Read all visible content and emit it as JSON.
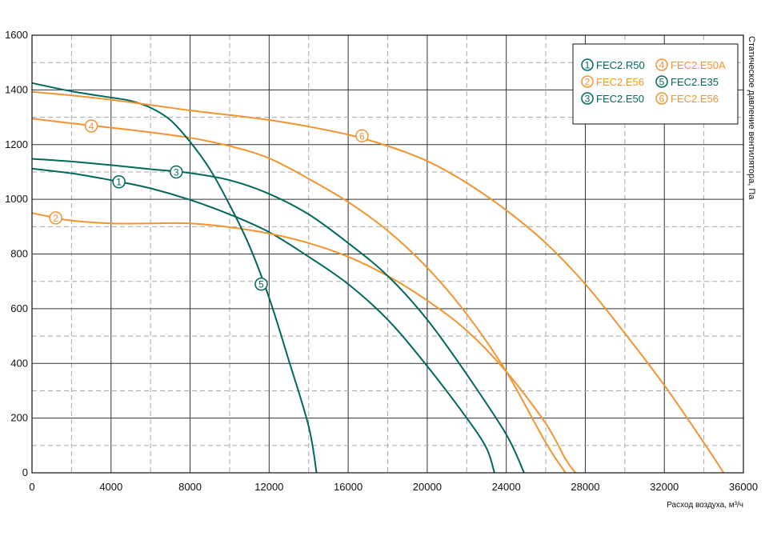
{
  "chart_data": {
    "type": "line",
    "xlabel": "Расход воздуха, м³/ч",
    "ylabel": "Статическое давление вентилятора, Па",
    "xlim": [
      0,
      36000
    ],
    "ylim": [
      0,
      1600
    ],
    "x_ticks": [
      0,
      4000,
      8000,
      12000,
      16000,
      20000,
      24000,
      28000,
      32000,
      36000
    ],
    "y_ticks": [
      0,
      200,
      400,
      600,
      800,
      1000,
      1200,
      1400,
      1600
    ],
    "x_tick_labels": [
      "0",
      "4000",
      "8000",
      "12000",
      "16000",
      "20000",
      "24000",
      "28000",
      "32000",
      "36000"
    ],
    "y_tick_labels": [
      "0",
      "200",
      "400",
      "600",
      "800",
      "1000",
      "1200",
      "1400",
      "1600"
    ],
    "grid": true,
    "legend_position": "top-right",
    "colors": {
      "green": "#00695C",
      "orange": "#F39430"
    },
    "series": [
      {
        "id": 1,
        "name": "FEC2.R50",
        "color": "#00695C",
        "marker": [
          4400,
          1064
        ],
        "points": [
          [
            0,
            1112
          ],
          [
            2000,
            1095
          ],
          [
            4000,
            1070
          ],
          [
            6000,
            1040
          ],
          [
            8000,
            998
          ],
          [
            10000,
            945
          ],
          [
            12000,
            880
          ],
          [
            14000,
            790
          ],
          [
            16000,
            690
          ],
          [
            18000,
            560
          ],
          [
            20000,
            390
          ],
          [
            22000,
            200
          ],
          [
            23000,
            90
          ],
          [
            23400,
            0
          ]
        ]
      },
      {
        "id": 2,
        "name": "FEC2.E56",
        "color": "#F39430",
        "marker": [
          1200,
          932
        ],
        "points": [
          [
            0,
            950
          ],
          [
            1000,
            935
          ],
          [
            2000,
            922
          ],
          [
            4000,
            912
          ],
          [
            6000,
            912
          ],
          [
            8000,
            912
          ],
          [
            10000,
            898
          ],
          [
            12000,
            875
          ],
          [
            14000,
            840
          ],
          [
            16000,
            790
          ],
          [
            18000,
            720
          ],
          [
            20000,
            630
          ],
          [
            22000,
            520
          ],
          [
            24000,
            370
          ],
          [
            26000,
            180
          ],
          [
            27000,
            50
          ],
          [
            27500,
            0
          ]
        ]
      },
      {
        "id": 3,
        "name": "FEC2.E50",
        "color": "#00695C",
        "marker": [
          7300,
          1100
        ],
        "points": [
          [
            0,
            1148
          ],
          [
            2000,
            1138
          ],
          [
            4000,
            1125
          ],
          [
            6000,
            1110
          ],
          [
            8000,
            1096
          ],
          [
            10000,
            1070
          ],
          [
            12000,
            1020
          ],
          [
            14000,
            945
          ],
          [
            16000,
            840
          ],
          [
            18000,
            720
          ],
          [
            20000,
            560
          ],
          [
            22000,
            360
          ],
          [
            24000,
            140
          ],
          [
            24900,
            0
          ]
        ]
      },
      {
        "id": 4,
        "name": "FEC2.E50A",
        "color": "#F39430",
        "marker": [
          3000,
          1268
        ],
        "points": [
          [
            0,
            1295
          ],
          [
            2000,
            1278
          ],
          [
            4000,
            1262
          ],
          [
            6000,
            1245
          ],
          [
            8000,
            1225
          ],
          [
            10000,
            1195
          ],
          [
            12000,
            1150
          ],
          [
            14000,
            1075
          ],
          [
            16000,
            990
          ],
          [
            18000,
            885
          ],
          [
            20000,
            750
          ],
          [
            22000,
            580
          ],
          [
            24000,
            370
          ],
          [
            26000,
            110
          ],
          [
            27000,
            0
          ]
        ]
      },
      {
        "id": 5,
        "name": "FEC2.E35",
        "color": "#00695C",
        "marker": [
          11600,
          690
        ],
        "points": [
          [
            0,
            1425
          ],
          [
            2000,
            1395
          ],
          [
            4000,
            1372
          ],
          [
            5000,
            1360
          ],
          [
            6000,
            1335
          ],
          [
            7000,
            1290
          ],
          [
            8000,
            1210
          ],
          [
            9000,
            1110
          ],
          [
            10000,
            980
          ],
          [
            11000,
            830
          ],
          [
            12000,
            640
          ],
          [
            13000,
            410
          ],
          [
            14000,
            170
          ],
          [
            14400,
            0
          ]
        ]
      },
      {
        "id": 6,
        "name": "FEC2.E56",
        "color": "#F39430",
        "marker": [
          16700,
          1232
        ],
        "points": [
          [
            0,
            1393
          ],
          [
            2000,
            1380
          ],
          [
            4000,
            1364
          ],
          [
            6000,
            1345
          ],
          [
            8000,
            1325
          ],
          [
            10000,
            1308
          ],
          [
            12000,
            1290
          ],
          [
            14000,
            1266
          ],
          [
            16000,
            1236
          ],
          [
            18000,
            1195
          ],
          [
            20000,
            1140
          ],
          [
            22000,
            1060
          ],
          [
            24000,
            960
          ],
          [
            26000,
            840
          ],
          [
            28000,
            690
          ],
          [
            30000,
            510
          ],
          [
            32000,
            320
          ],
          [
            34000,
            110
          ],
          [
            35000,
            0
          ]
        ]
      }
    ]
  }
}
